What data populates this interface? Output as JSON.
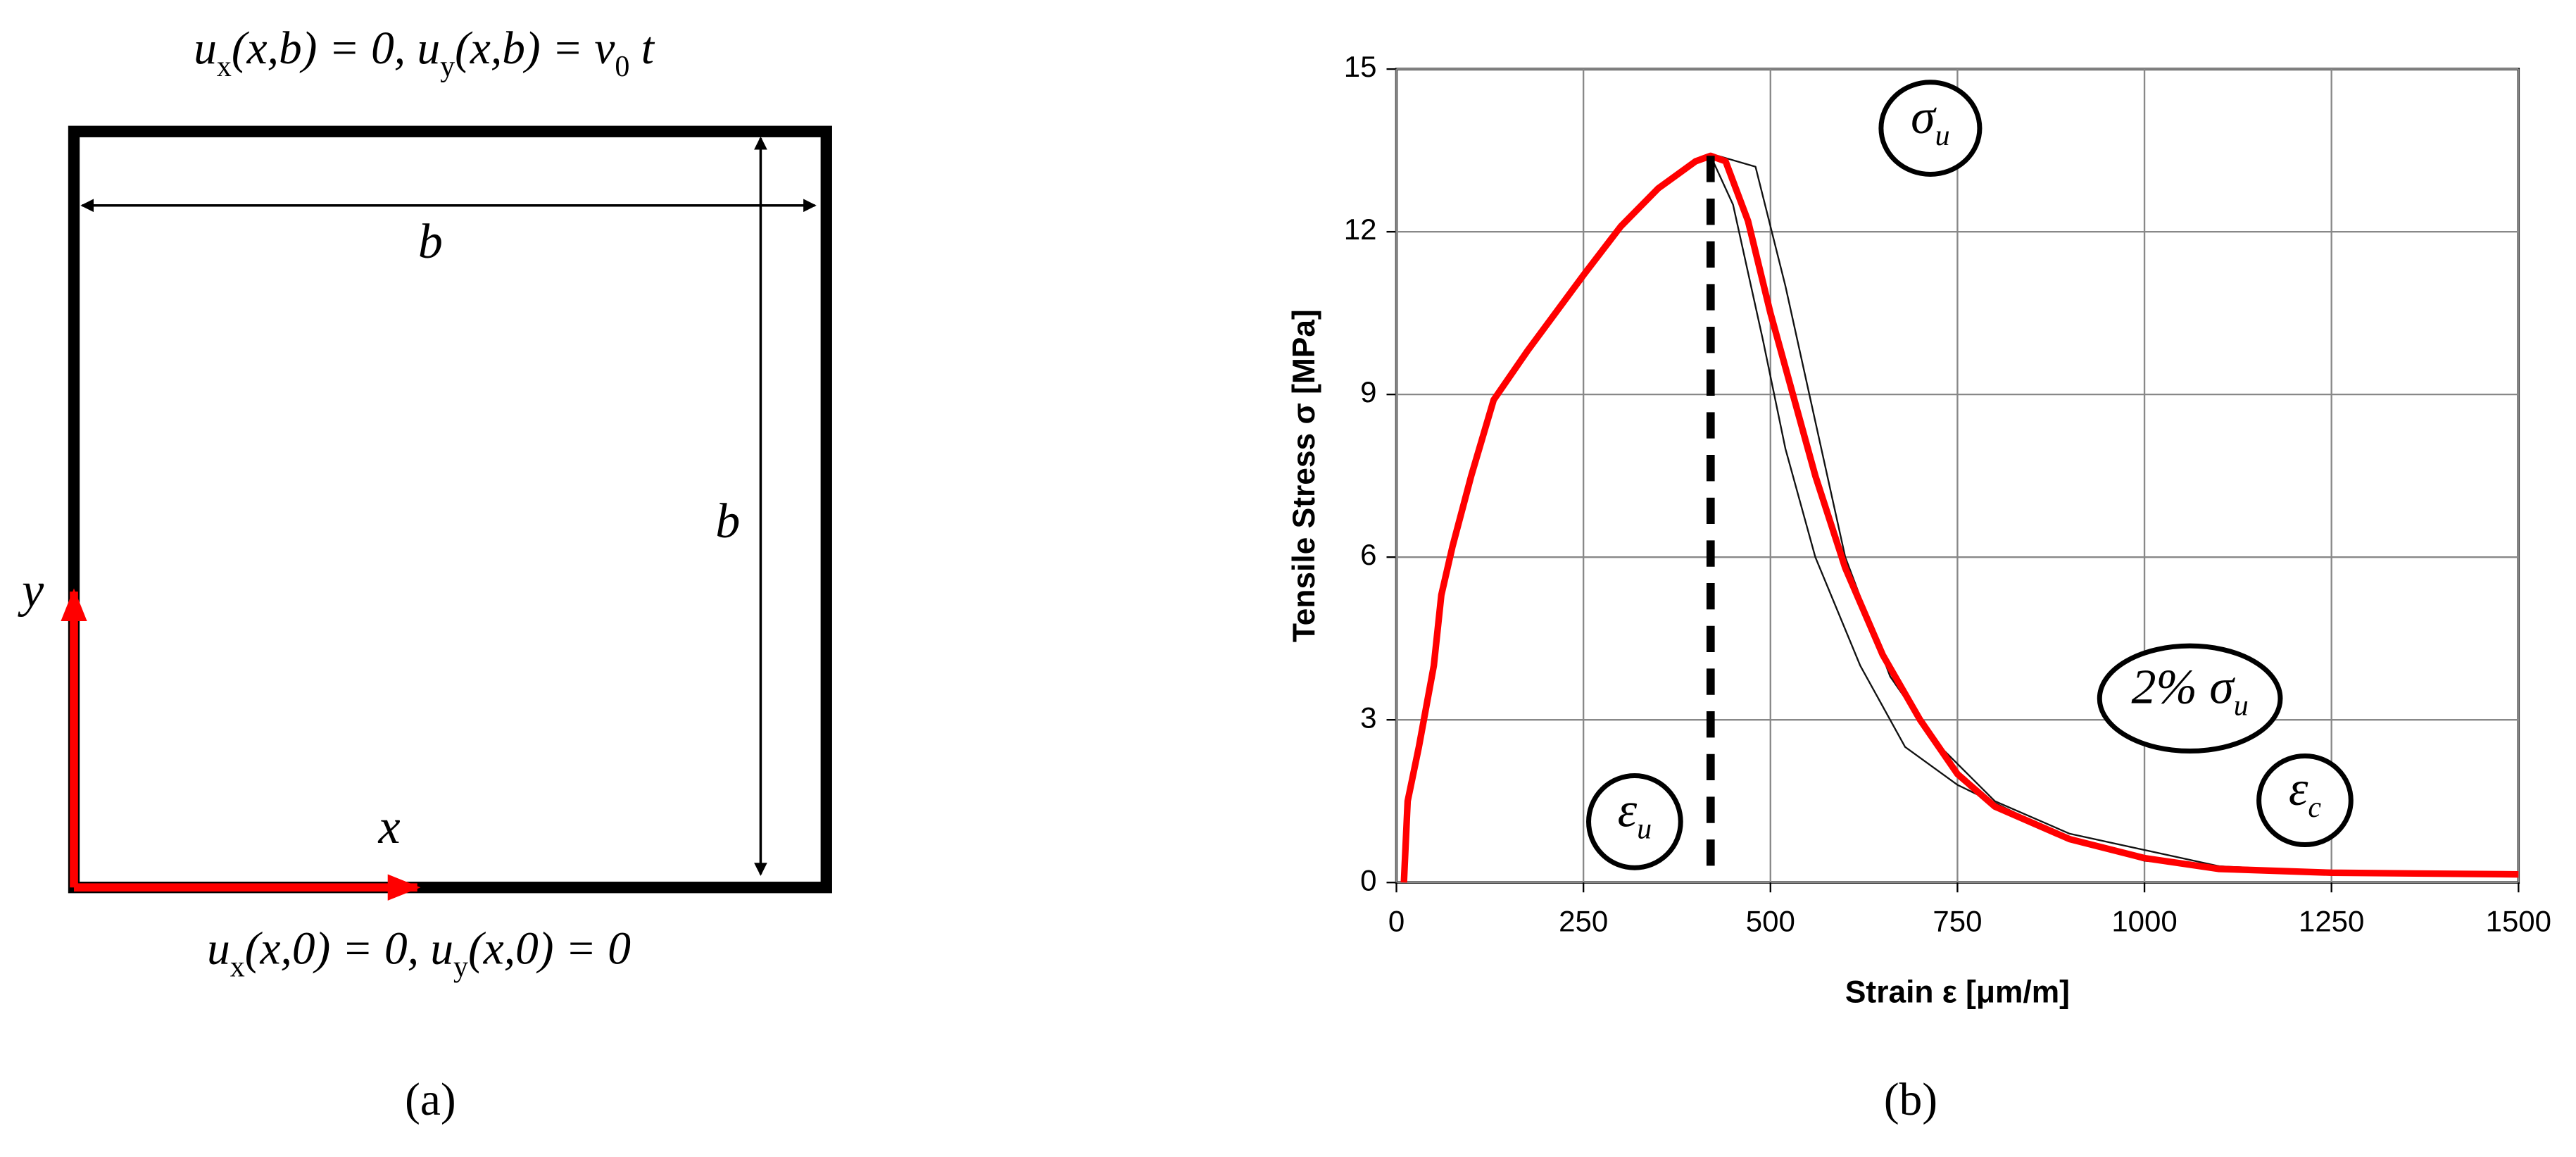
{
  "diagram": {
    "top_condition": [
      "u",
      "x",
      "(x,b) = 0, u",
      "y",
      "(x,b) = v",
      "0",
      " t"
    ],
    "bottom_condition": [
      "u",
      "x",
      "(x,0) = 0, u",
      "y",
      "(x,0) = 0"
    ],
    "width_label": "b",
    "height_label": "b",
    "y_axis_label": "y",
    "x_axis_label": "x",
    "panel_label": "(a)"
  },
  "chart_panel_label": "(b)",
  "chart_data": {
    "type": "line",
    "x_label": "Strain ε [μm/m]",
    "y_label": "Tensile Stress σ [MPa]",
    "xlim": [
      0,
      1500
    ],
    "ylim": [
      0,
      15
    ],
    "xticks": [
      0,
      250,
      500,
      750,
      1000,
      1250,
      1500
    ],
    "yticks": [
      0,
      3,
      6,
      9,
      12,
      15
    ],
    "grid": true,
    "series": [
      {
        "color": "#111111",
        "width": 1,
        "x": [
          420,
          450,
          490,
          520,
          560,
          620,
          680,
          750,
          900,
          1000,
          1200
        ],
        "y": [
          13.4,
          12.5,
          10,
          8,
          6,
          4,
          2.5,
          1.8,
          0.8,
          0.4,
          0.2
        ]
      },
      {
        "color": "#111111",
        "width": 1,
        "x": [
          430,
          480,
          520,
          560,
          600,
          660,
          720,
          800,
          900,
          1100,
          1250
        ],
        "y": [
          13.4,
          13.2,
          11,
          8.5,
          6,
          3.8,
          2.6,
          1.5,
          0.9,
          0.3,
          0.2
        ]
      },
      {
        "color": "#ff0000",
        "width": 4,
        "x": [
          10,
          15,
          30,
          50,
          60,
          75,
          100,
          130,
          175,
          250,
          300,
          350,
          400,
          420,
          440,
          470,
          500,
          530,
          560,
          600,
          650,
          700,
          750,
          800,
          900,
          1000,
          1100,
          1250,
          1500
        ],
        "y": [
          0,
          1.5,
          2.5,
          4,
          5.3,
          6.2,
          7.5,
          8.9,
          9.8,
          11.2,
          12.1,
          12.8,
          13.3,
          13.4,
          13.3,
          12.2,
          10.5,
          9,
          7.5,
          5.8,
          4.2,
          3,
          2,
          1.4,
          0.8,
          0.45,
          0.25,
          0.18,
          0.15
        ]
      }
    ],
    "ultimate_strain": 420,
    "ultimate_stress": 13.4,
    "annotations": [
      {
        "symbol": "σ",
        "sub": "u"
      },
      {
        "symbol": "ε",
        "sub": "u"
      },
      {
        "symbol": "2% σ",
        "sub": "u"
      },
      {
        "symbol": "ε",
        "sub": "c"
      }
    ]
  }
}
